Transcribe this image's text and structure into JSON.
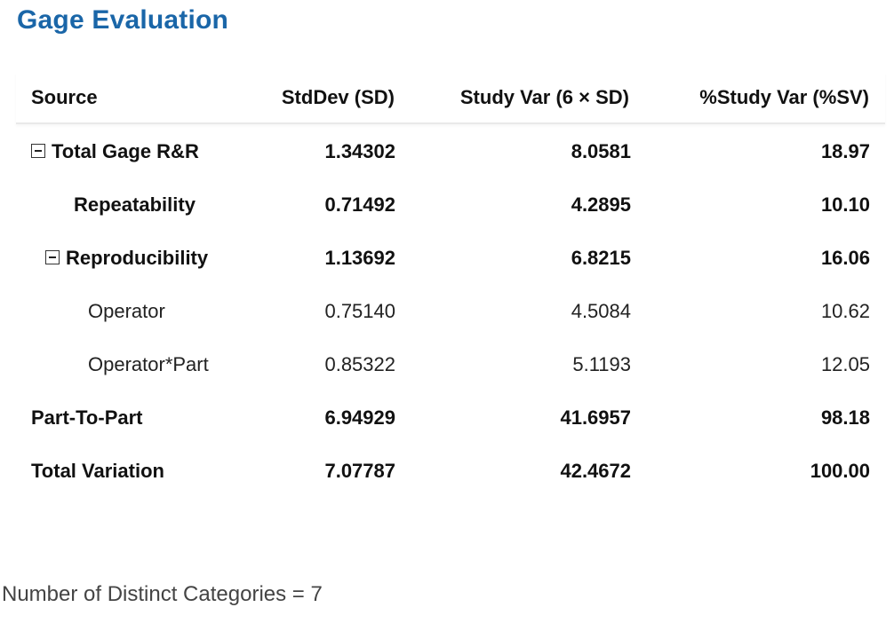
{
  "title": "Gage Evaluation",
  "table": {
    "headers": {
      "source": "Source",
      "stddev": "StdDev (SD)",
      "study_var": "Study Var (6 × SD)",
      "pct_study_var": "%Study Var (%SV)"
    },
    "rows": [
      {
        "source": "Total Gage R&R",
        "stddev": "1.34302",
        "study_var": "8.0581",
        "pct_study_var": "18.97",
        "collapsible": true
      },
      {
        "source": "Repeatability",
        "stddev": "0.71492",
        "study_var": "4.2895",
        "pct_study_var": "10.10"
      },
      {
        "source": "Reproducibility",
        "stddev": "1.13692",
        "study_var": "6.8215",
        "pct_study_var": "16.06",
        "collapsible": true
      },
      {
        "source": "Operator",
        "stddev": "0.75140",
        "study_var": "4.5084",
        "pct_study_var": "10.62"
      },
      {
        "source": "Operator*Part",
        "stddev": "0.85322",
        "study_var": "5.1193",
        "pct_study_var": "12.05"
      },
      {
        "source": "Part-To-Part",
        "stddev": "6.94929",
        "study_var": "41.6957",
        "pct_study_var": "98.18"
      },
      {
        "source": "Total Variation",
        "stddev": "7.07787",
        "study_var": "42.4672",
        "pct_study_var": "100.00"
      }
    ]
  },
  "footer": {
    "distinct_categories_text": "Number of Distinct Categories = 7"
  }
}
